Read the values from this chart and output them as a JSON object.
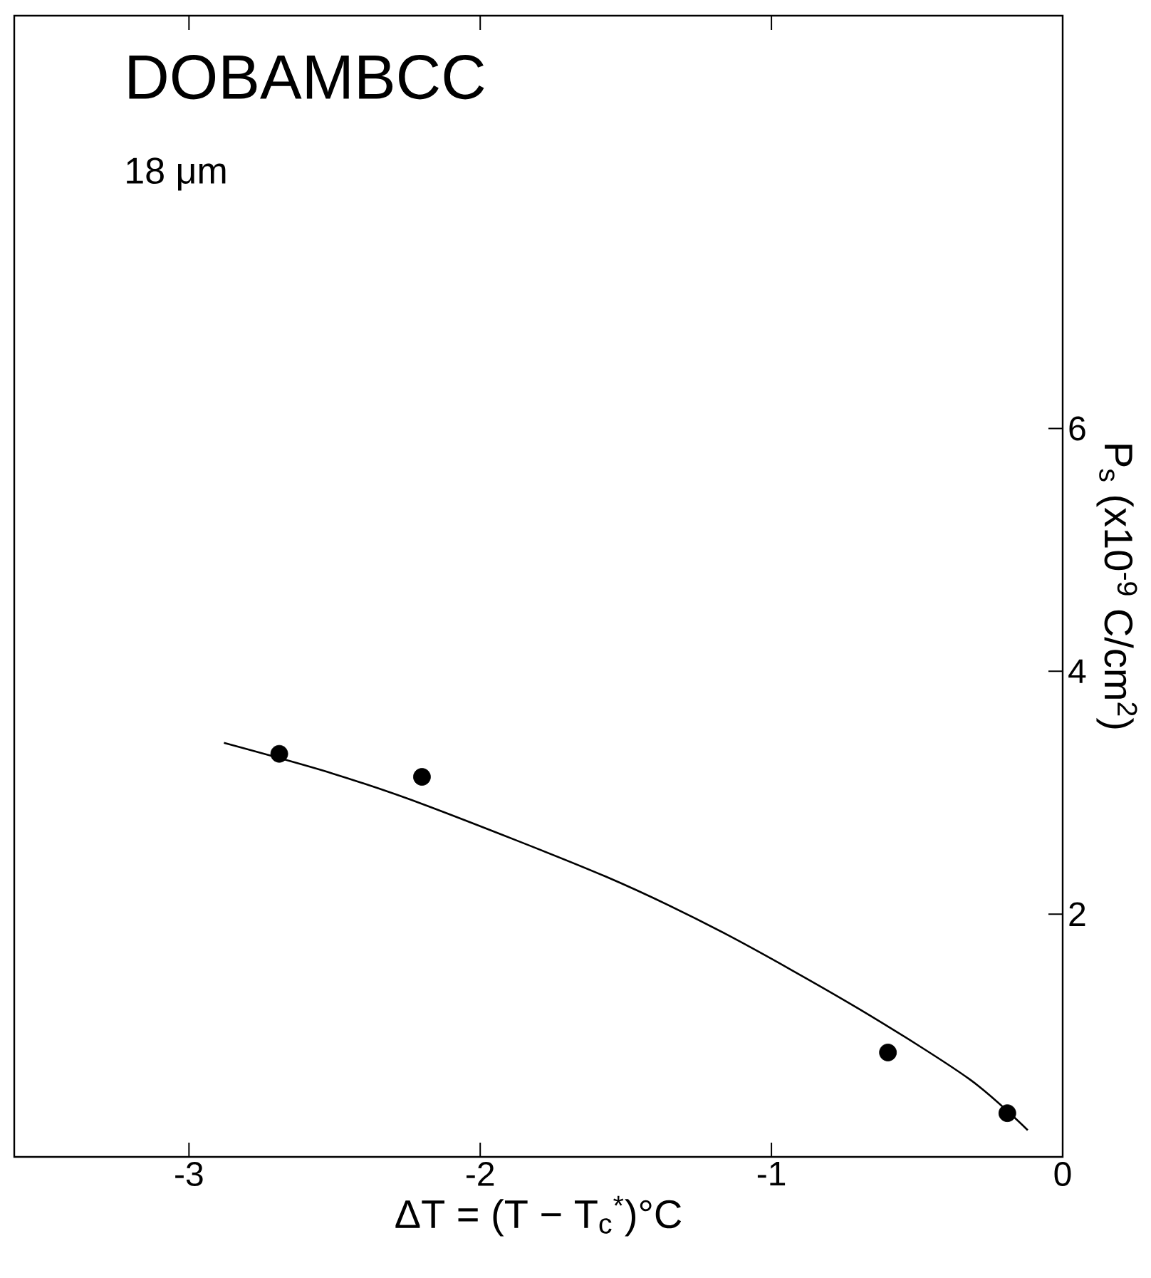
{
  "chart_data": {
    "type": "scatter",
    "title": "DOBAMBCC",
    "annotations": [
      "18 μm"
    ],
    "xlabel": "ΔT = (T − T$_{c}$$^{*}$)°C",
    "ylabel": "P$_{s}$ (x10$^{-9}$ C/cm$^{2}$)",
    "xlim": [
      -3.6,
      0
    ],
    "ylim": [
      0,
      9.4
    ],
    "xticks": [
      -3,
      -2,
      -1,
      0
    ],
    "yticks": [
      2,
      4,
      6
    ],
    "legend": false,
    "series": [
      {
        "color": "#000000",
        "marker": "circle",
        "x": [
          -2.69,
          -2.2,
          -0.6,
          -0.19
        ],
        "values": [
          3.32,
          3.13,
          0.86,
          0.36
        ]
      },
      {
        "type": "line",
        "color": "#000000",
        "marker": "none",
        "x": [
          -2.88,
          -2.51,
          -2.18,
          -1.57,
          -1.16,
          -0.7,
          -0.32,
          -0.12
        ],
        "values": [
          3.41,
          3.16,
          2.89,
          2.31,
          1.84,
          1.22,
          0.64,
          0.22
        ]
      }
    ]
  }
}
